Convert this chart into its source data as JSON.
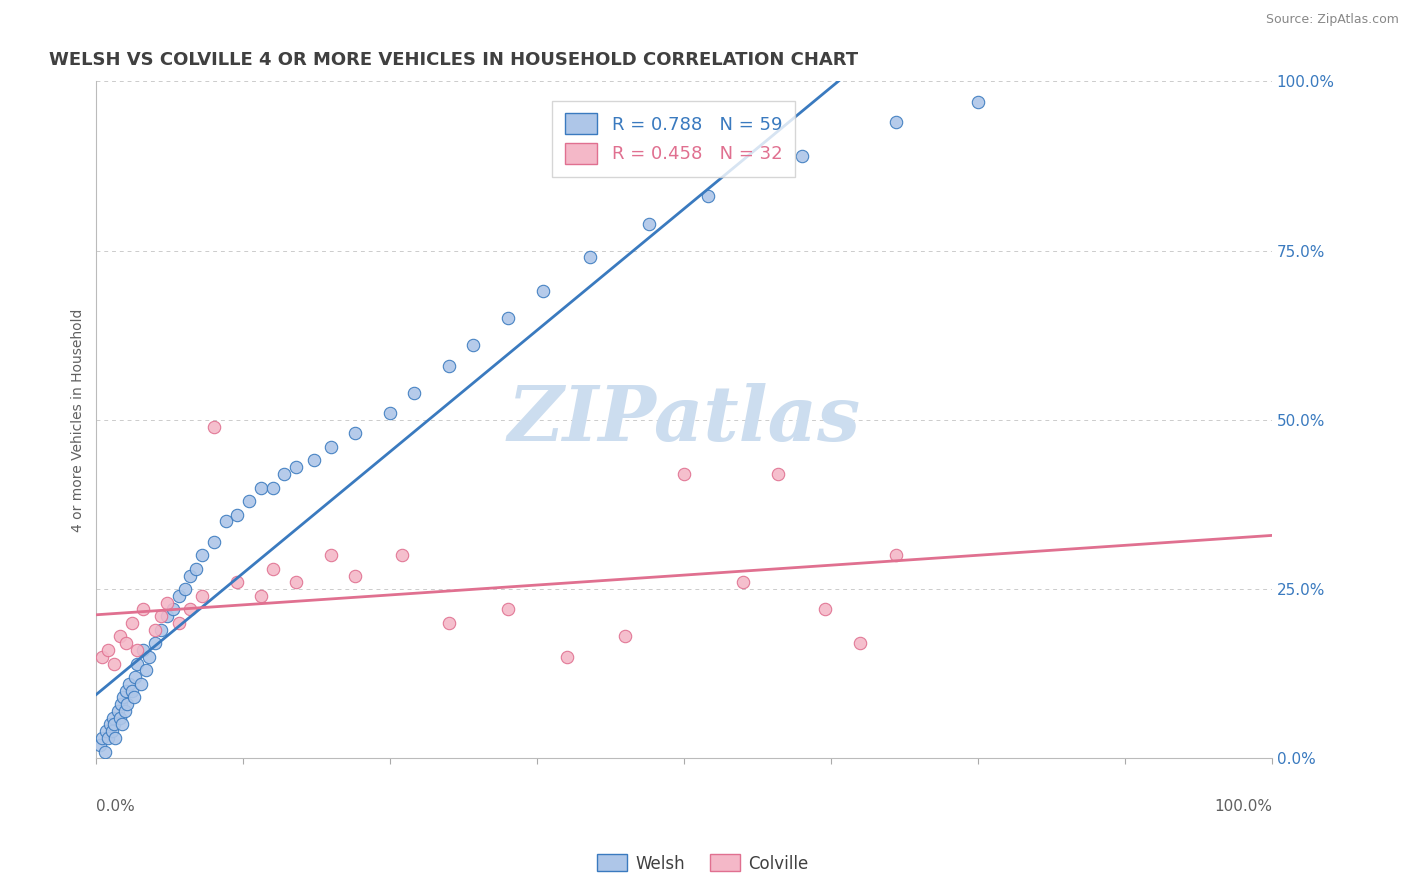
{
  "title": "WELSH VS COLVILLE 4 OR MORE VEHICLES IN HOUSEHOLD CORRELATION CHART",
  "source": "Source: ZipAtlas.com",
  "ylabel": "4 or more Vehicles in Household",
  "legend_welsh": "Welsh",
  "legend_colville": "Colville",
  "welsh_R": "0.788",
  "welsh_N": "59",
  "colville_R": "0.458",
  "colville_N": "32",
  "welsh_color": "#aec6e8",
  "welsh_line_color": "#3a7abf",
  "colville_color": "#f4b8c8",
  "colville_line_color": "#e07090",
  "background_color": "#ffffff",
  "watermark_text": "ZIPatlas",
  "watermark_color": "#ccddef",
  "xmin": 0,
  "xmax": 100,
  "ymin": 0,
  "ymax": 100,
  "right_yticks": [
    0,
    25,
    50,
    75,
    100
  ],
  "right_yticklabels": [
    "0.0%",
    "25.0%",
    "50.0%",
    "75.0%",
    "100.0%"
  ],
  "grid_color": "#cccccc",
  "title_color": "#404040",
  "title_fontsize": 13,
  "axis_label_color": "#606060",
  "scatter_size": 80,
  "welsh_x": [
    0.3,
    0.5,
    0.7,
    0.8,
    1.0,
    1.2,
    1.3,
    1.4,
    1.5,
    1.6,
    1.8,
    2.0,
    2.1,
    2.2,
    2.3,
    2.4,
    2.5,
    2.6,
    2.8,
    3.0,
    3.2,
    3.3,
    3.5,
    3.8,
    4.0,
    4.2,
    4.5,
    5.0,
    5.5,
    6.0,
    6.5,
    7.0,
    7.5,
    8.0,
    8.5,
    9.0,
    10.0,
    11.0,
    12.0,
    13.0,
    14.0,
    15.0,
    16.0,
    17.0,
    18.5,
    20.0,
    22.0,
    25.0,
    27.0,
    30.0,
    32.0,
    35.0,
    38.0,
    42.0,
    47.0,
    52.0,
    60.0,
    68.0,
    75.0
  ],
  "welsh_y": [
    2,
    3,
    1,
    4,
    3,
    5,
    4,
    6,
    5,
    3,
    7,
    6,
    8,
    5,
    9,
    7,
    10,
    8,
    11,
    10,
    9,
    12,
    14,
    11,
    16,
    13,
    15,
    17,
    19,
    21,
    22,
    24,
    25,
    27,
    28,
    30,
    32,
    35,
    36,
    38,
    40,
    40,
    42,
    43,
    44,
    46,
    48,
    51,
    54,
    58,
    61,
    65,
    69,
    74,
    79,
    83,
    89,
    94,
    97
  ],
  "colville_x": [
    0.5,
    1.0,
    1.5,
    2.0,
    2.5,
    3.0,
    3.5,
    4.0,
    5.0,
    5.5,
    6.0,
    7.0,
    8.0,
    9.0,
    10.0,
    12.0,
    14.0,
    15.0,
    17.0,
    20.0,
    22.0,
    26.0,
    30.0,
    35.0,
    40.0,
    45.0,
    50.0,
    55.0,
    58.0,
    62.0,
    65.0,
    68.0
  ],
  "colville_y": [
    15,
    16,
    14,
    18,
    17,
    20,
    16,
    22,
    19,
    21,
    23,
    20,
    22,
    24,
    49,
    26,
    24,
    28,
    26,
    30,
    27,
    30,
    20,
    22,
    15,
    18,
    42,
    26,
    42,
    22,
    17,
    30
  ]
}
